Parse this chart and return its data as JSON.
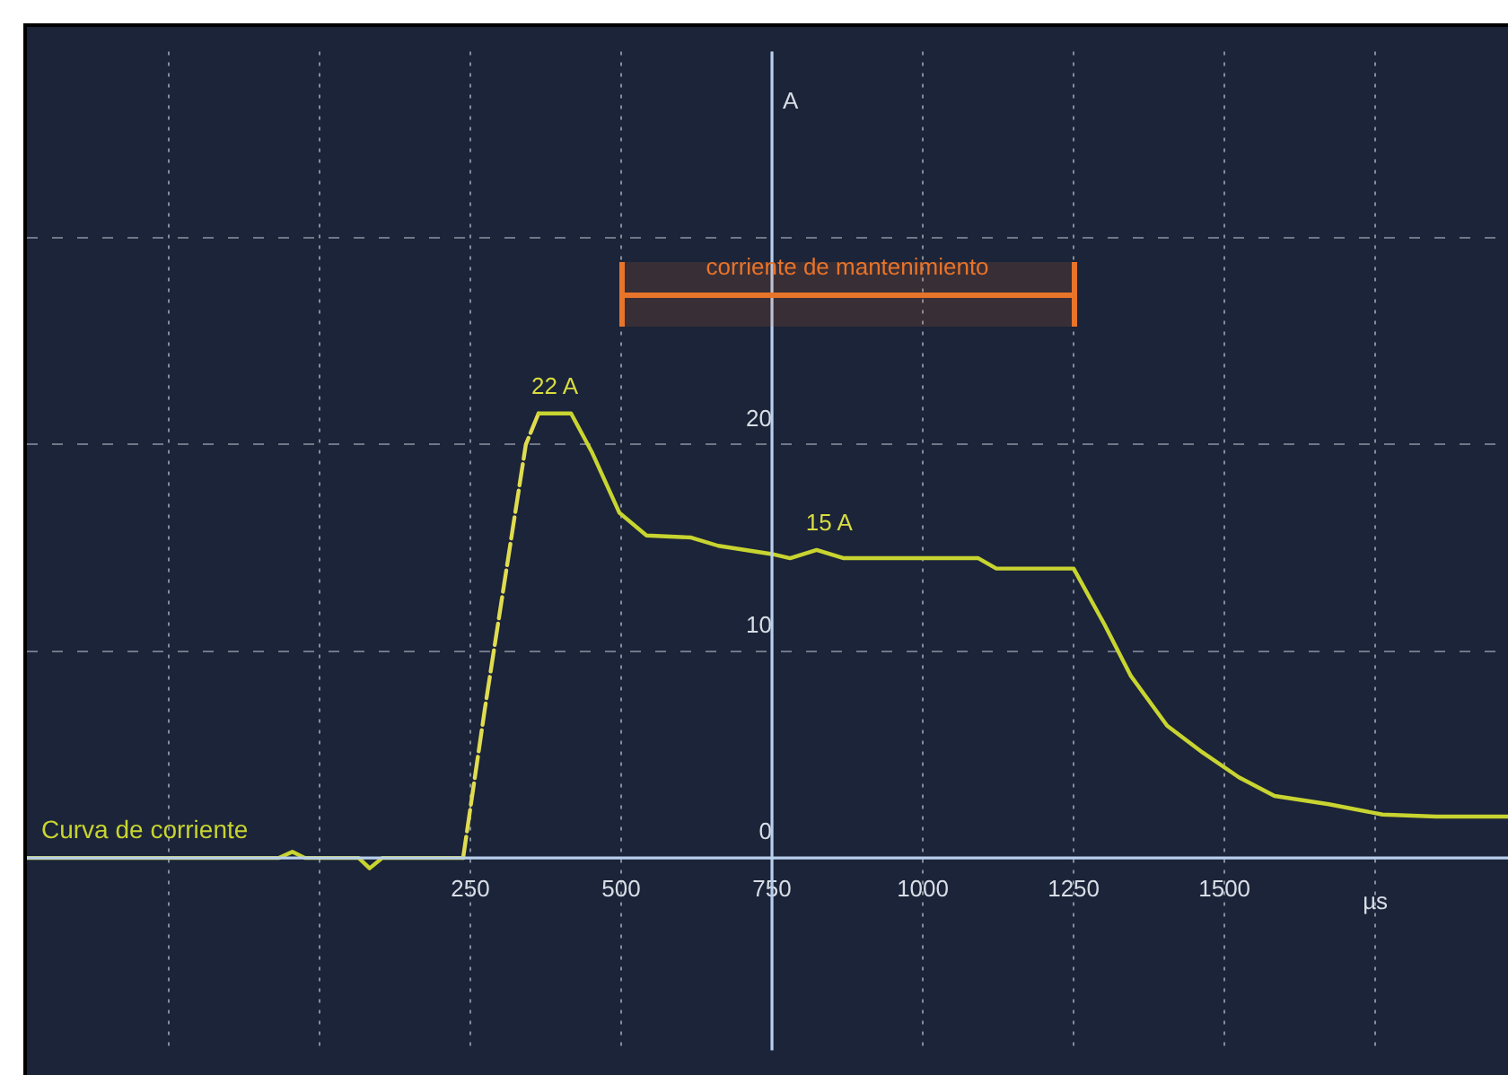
{
  "chart_data": {
    "type": "line",
    "ylabel": "A",
    "xlabel": "µs",
    "xlim": [
      -485,
      1970
    ],
    "ylim": [
      -9.3,
      39
    ],
    "xticks": [
      {
        "value": -250,
        "label": null
      },
      {
        "value": 0,
        "label": null
      },
      250,
      500,
      750,
      1000,
      1250,
      1500,
      {
        "value": 1750,
        "label": null
      }
    ],
    "yticks": [
      0,
      10,
      20,
      {
        "value": 30,
        "label": null
      }
    ],
    "grid": true,
    "legend": false,
    "marker": "none",
    "series": [
      {
        "name": "Curva de corriente",
        "color": "#c8d430",
        "line_style": "solid",
        "x": [
          -485,
          -68,
          -45,
          -24,
          65,
          83,
          104,
          229,
          238,
          274,
          318,
          342,
          363,
          417,
          452,
          497,
          542,
          616,
          661,
          750,
          780,
          824,
          869,
          1092,
          1122,
          1250,
          1301,
          1345,
          1405,
          1464,
          1524,
          1583,
          1673,
          1762,
          1851,
          1970
        ],
        "values": [
          0,
          0,
          0.3,
          0,
          0,
          -0.5,
          0,
          0,
          0,
          null,
          null,
          null,
          21.5,
          21.5,
          19.6,
          16.7,
          15.6,
          15.5,
          15.1,
          14.7,
          14.5,
          14.9,
          14.5,
          14.5,
          14.0,
          14.0,
          11.3,
          8.8,
          6.4,
          5.1,
          3.9,
          3.0,
          2.6,
          2.1,
          2.0,
          2.0
        ]
      },
      {
        "color": "#e0dc50",
        "line_style": "dashed",
        "x": [
          238,
          274,
          318,
          342,
          363
        ],
        "values": [
          0,
          7.2,
          15.5,
          20.0,
          21.5
        ]
      }
    ],
    "annotations": [
      {
        "text": "22 A",
        "x": 390,
        "y": 21.5
      },
      {
        "text": "15 A",
        "x": 845,
        "y": 14.9
      }
    ],
    "bands": [
      {
        "axis": "x",
        "from": 500,
        "to": 1250,
        "label": "corriente de mantenimiento",
        "color": "#e8742a"
      }
    ]
  }
}
